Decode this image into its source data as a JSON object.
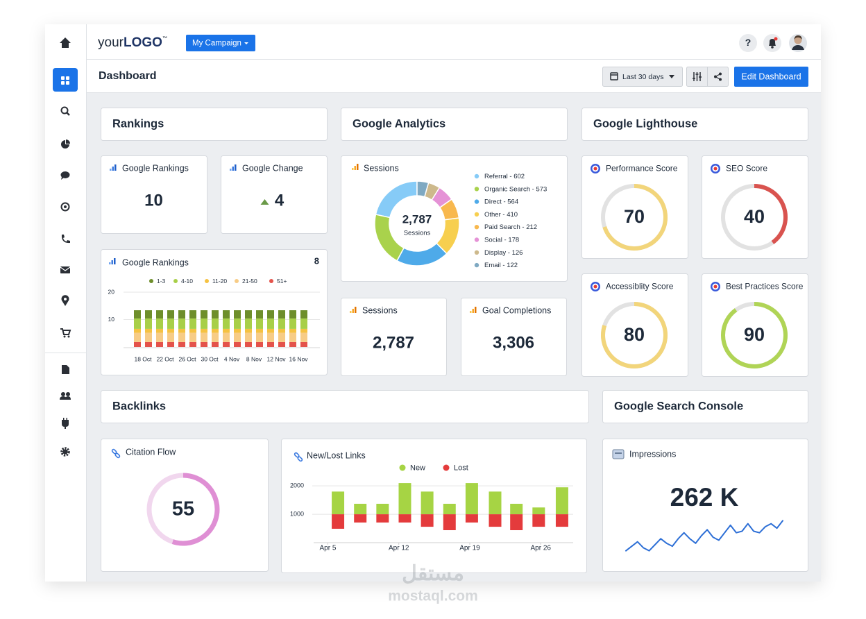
{
  "topbar": {
    "logo_prefix": "your",
    "logo_main": "LOGO",
    "logo_tm": "™",
    "campaign": "My Campaign",
    "help": "?"
  },
  "toolbar": {
    "title": "Dashboard",
    "date_range": "Last 30 days",
    "edit": "Edit Dashboard"
  },
  "sections": {
    "rankings": "Rankings",
    "analytics": "Google Analytics",
    "lighthouse": "Google Lighthouse",
    "backlinks": "Backlinks",
    "search_console": "Google Search Console"
  },
  "kpis": [
    {
      "label": "Google Rankings",
      "value": 10
    },
    {
      "label": "Google Change",
      "value": 4,
      "trend": "up"
    },
    {
      "label": "Sessions",
      "value": "2,787"
    },
    {
      "label": "Goal Completions",
      "value": "3,306"
    },
    {
      "label": "Impressions",
      "value": "262 K"
    }
  ],
  "rankings_chart": {
    "type": "bar",
    "stacked": true,
    "title": "Google Rankings",
    "badge": 8,
    "categories": [
      "18 Oct",
      null,
      "22 Oct",
      null,
      "26 Oct",
      null,
      "30 Oct",
      null,
      "4 Nov",
      null,
      "8 Nov",
      null,
      "12 Nov",
      null,
      "16 Nov",
      null
    ],
    "series": [
      {
        "name": "1-3",
        "color": "#6e8e2b",
        "values": [
          3,
          3,
          3,
          3,
          3,
          3,
          3,
          3,
          3,
          3,
          3,
          3,
          3,
          3,
          3,
          3
        ]
      },
      {
        "name": "4-10",
        "color": "#a8cf48",
        "values": [
          3.8,
          3.8,
          3.8,
          3.8,
          3.8,
          3.8,
          3.8,
          3.8,
          3.8,
          3.8,
          3.8,
          3.8,
          3.8,
          3.8,
          3.8,
          3.8
        ]
      },
      {
        "name": "11-20",
        "color": "#f5c242",
        "values": [
          1.4,
          1.4,
          1.4,
          1.4,
          1.4,
          1.4,
          1.4,
          1.4,
          1.4,
          1.4,
          1.4,
          1.4,
          1.4,
          1.4,
          1.4,
          1.4
        ]
      },
      {
        "name": "21-50",
        "color": "#f7cc86",
        "values": [
          3.4,
          3.4,
          3.4,
          3.4,
          3.4,
          3.4,
          3.4,
          3.4,
          3.4,
          3.4,
          3.4,
          3.4,
          3.4,
          3.4,
          3.4,
          3.4
        ]
      },
      {
        "name": "51+",
        "color": "#e4534b",
        "values": [
          1.8,
          1.8,
          1.8,
          1.8,
          1.8,
          1.8,
          1.8,
          1.8,
          1.8,
          1.8,
          1.8,
          1.8,
          1.8,
          1.8,
          1.8,
          1.8
        ]
      }
    ],
    "ylim": [
      0,
      20
    ],
    "yticks": [
      10,
      20
    ],
    "grid": true
  },
  "sessions_donut": {
    "type": "donut",
    "title": "Sessions",
    "total": "2,787",
    "center_caption": "Sessions",
    "categories": [
      "Referral - 602",
      "Organic Search - 573",
      "Direct - 564",
      "Other - 410",
      "Paid Search - 212",
      "Social - 178",
      "Display - 126",
      "Email - 122"
    ],
    "values": [
      602,
      573,
      564,
      410,
      212,
      178,
      126,
      122
    ],
    "colors": [
      "#86cbf7",
      "#a9d24c",
      "#4eaae9",
      "#f7cf4f",
      "#f8b84e",
      "#e592d6",
      "#cdb98c",
      "#7fa9c2"
    ]
  },
  "lighthouse": [
    {
      "type": "gauge",
      "title": "Performance Score",
      "value": 70,
      "ylim": [
        0,
        100
      ],
      "color": "#f2d57b"
    },
    {
      "type": "gauge",
      "title": "SEO Score",
      "value": 40,
      "ylim": [
        0,
        100
      ],
      "color": "#d9534f"
    },
    {
      "type": "gauge",
      "title": "Accessiblity Score",
      "value": 80,
      "ylim": [
        0,
        100
      ],
      "color": "#f2d57b"
    },
    {
      "type": "gauge",
      "title": "Best Practices Score",
      "value": 90,
      "ylim": [
        0,
        100
      ],
      "color": "#b0d456"
    }
  ],
  "citation_flow": {
    "type": "gauge",
    "title": "Citation Flow",
    "value": 55,
    "ylim": [
      0,
      100
    ],
    "color": "#df8fd4"
  },
  "links_chart": {
    "type": "bar",
    "title": "New/Lost Links",
    "baseline": 1000,
    "x": [
      6.0,
      8.2,
      10.4,
      12.6,
      14.8,
      17.0,
      19.2,
      21.5,
      23.6,
      25.8,
      28.1
    ],
    "xlim": [
      3.6,
      29.2
    ],
    "xticks": [
      {
        "value": 5,
        "label": "Apr 5"
      },
      {
        "value": 12,
        "label": "Apr 12"
      },
      {
        "value": 19,
        "label": "Apr 19"
      },
      {
        "value": 26,
        "label": "Apr 26"
      }
    ],
    "ylim": [
      0,
      2200
    ],
    "yticks": [
      1000,
      2000
    ],
    "grid": true,
    "series": [
      {
        "name": "New",
        "color": "#a6d444",
        "direction": "up",
        "values": [
          800,
          370,
          370,
          1100,
          800,
          370,
          1100,
          800,
          370,
          240,
          950
        ]
      },
      {
        "name": "Lost",
        "color": "#e43b3c",
        "direction": "down",
        "values": [
          510,
          290,
          290,
          290,
          440,
          560,
          290,
          440,
          560,
          440,
          440
        ]
      }
    ]
  },
  "impressions_spark": {
    "type": "line",
    "color": "#2d6fd6",
    "ylim": [
      0,
      12
    ],
    "values": [
      1,
      2.5,
      4,
      2,
      1,
      3,
      5,
      3.5,
      2.5,
      5,
      7,
      5,
      3.5,
      6,
      8,
      5.5,
      4.5,
      7,
      9.5,
      7,
      7.5,
      10,
      7.5,
      7,
      9,
      10,
      8.5,
      11
    ]
  },
  "watermark": {
    "arabic": "مستقل",
    "latin": "mostaql.com"
  }
}
